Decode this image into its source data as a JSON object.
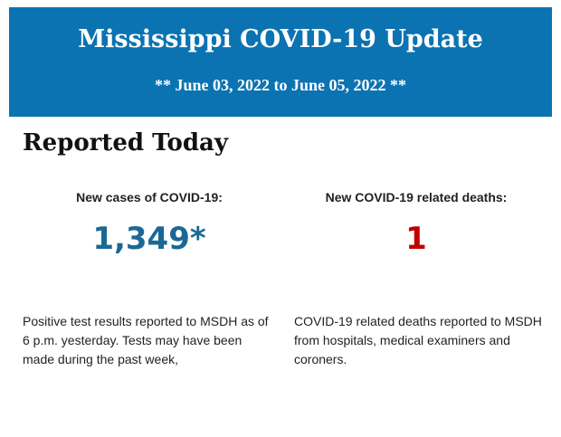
{
  "header": {
    "title": "Mississippi COVID-19 Update",
    "date_range": "** June 03, 2022 to June 05, 2022 **",
    "background_color": "#0b73b1"
  },
  "section_title": "Reported Today",
  "cases": {
    "label": "New cases of COVID-19:",
    "value": "1,349*",
    "color": "#1a6896",
    "description": "Positive test results reported to MSDH as of 6 p.m. yesterday. Tests may have been made during the past week,"
  },
  "deaths": {
    "label": "New COVID-19 related deaths:",
    "value": "1",
    "color": "#c00000",
    "description": "COVID-19 related deaths reported to MSDH from hospitals, medical examiners and coroners."
  }
}
